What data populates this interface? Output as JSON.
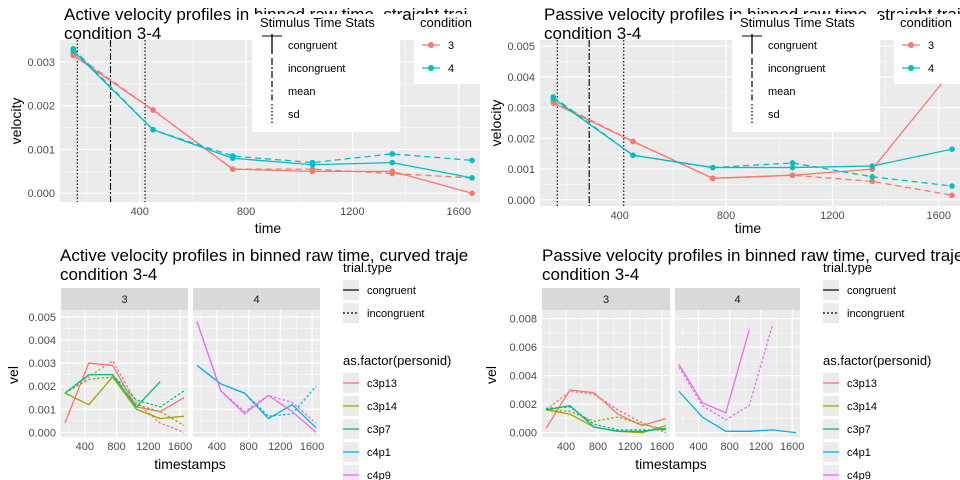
{
  "chart_data": [
    {
      "type": "line",
      "title": "Active velocity profiles in binned raw time, straight traj",
      "subtitle": "condition 3-4",
      "xlabel": "time",
      "ylabel": "velocity",
      "xlim": [
        100,
        1680
      ],
      "ylim": [
        -0.0002,
        0.0035
      ],
      "xticks": [
        400,
        800,
        1200,
        1600
      ],
      "yticks": [
        0,
        0.001,
        0.002,
        0.003
      ],
      "ytick_labels": [
        "0.000",
        "0.001",
        "0.002",
        "0.003"
      ],
      "grid": true,
      "series": [
        {
          "name": "3",
          "trial_type": "congruent",
          "color": "#F8766D",
          "x": [
            150,
            450,
            750,
            1050,
            1350,
            1650
          ],
          "y": [
            0.00315,
            0.0019,
            0.00055,
            0.0005,
            0.0005,
            0.0
          ]
        },
        {
          "name": "3",
          "trial_type": "incongruent",
          "color": "#F8766D",
          "x": [
            150,
            450,
            750,
            1050,
            1350,
            1650
          ],
          "y": [
            0.0032,
            0.0019,
            0.00055,
            0.00055,
            0.00045,
            0.00035
          ]
        },
        {
          "name": "4",
          "trial_type": "congruent",
          "color": "#00BFC4",
          "x": [
            150,
            450,
            750,
            1050,
            1350,
            1650
          ],
          "y": [
            0.00325,
            0.00145,
            0.0008,
            0.00065,
            0.0007,
            0.00035
          ]
        },
        {
          "name": "4",
          "trial_type": "incongruent",
          "color": "#00BFC4",
          "x": [
            150,
            450,
            750,
            1050,
            1350,
            1650
          ],
          "y": [
            0.0033,
            0.00145,
            0.00085,
            0.0007,
            0.0009,
            0.00075
          ]
        }
      ],
      "vlines": [
        {
          "x": 165,
          "style": "sd"
        },
        {
          "x": 290,
          "style": "incongruent"
        },
        {
          "x": 420,
          "style": "sd"
        }
      ],
      "legend_stats": {
        "title": "Stimulus Time Stats",
        "items": [
          "congruent",
          "incongruent",
          "mean",
          "sd"
        ]
      },
      "legend_condition": {
        "title": "condition",
        "items": [
          "3",
          "4"
        ]
      }
    },
    {
      "type": "line",
      "title": "Passive velocity profiles in binned raw time, straight traj",
      "subtitle": "condition 3-4",
      "xlabel": "time",
      "ylabel": "velocity",
      "xlim": [
        100,
        1680
      ],
      "ylim": [
        -0.0002,
        0.0052
      ],
      "xticks": [
        400,
        800,
        1200,
        1600
      ],
      "yticks": [
        0,
        0.001,
        0.002,
        0.003,
        0.004,
        0.005
      ],
      "ytick_labels": [
        "0.000",
        "0.001",
        "0.002",
        "0.003",
        "0.004",
        "0.005"
      ],
      "grid": true,
      "series": [
        {
          "name": "3",
          "trial_type": "congruent",
          "color": "#F8766D",
          "x": [
            150,
            450,
            750,
            1050,
            1350,
            1650
          ],
          "y": [
            0.00315,
            0.0019,
            0.0007,
            0.0008,
            0.001,
            0.0042
          ]
        },
        {
          "name": "3",
          "trial_type": "incongruent",
          "color": "#F8766D",
          "x": [
            150,
            450,
            750,
            1050,
            1350,
            1650
          ],
          "y": [
            0.0032,
            0.0019,
            0.0007,
            0.0008,
            0.0006,
            0.00015
          ]
        },
        {
          "name": "4",
          "trial_type": "congruent",
          "color": "#00BFC4",
          "x": [
            150,
            450,
            750,
            1050,
            1350,
            1650
          ],
          "y": [
            0.0033,
            0.00145,
            0.00105,
            0.00105,
            0.0011,
            0.00165
          ]
        },
        {
          "name": "4",
          "trial_type": "incongruent",
          "color": "#00BFC4",
          "x": [
            150,
            450,
            750,
            1050,
            1350,
            1650
          ],
          "y": [
            0.00335,
            0.00145,
            0.00105,
            0.0012,
            0.00075,
            0.00045
          ]
        }
      ],
      "vlines": [
        {
          "x": 165,
          "style": "sd"
        },
        {
          "x": 285,
          "style": "incongruent"
        },
        {
          "x": 415,
          "style": "sd"
        }
      ],
      "legend_stats": {
        "title": "Stimulus Time Stats",
        "items": [
          "congruent",
          "incongruent",
          "mean",
          "sd"
        ]
      },
      "legend_condition": {
        "title": "condition",
        "items": [
          "3",
          "4"
        ]
      }
    },
    {
      "type": "line",
      "title": "Active velocity profiles in binned raw time, curved traje",
      "subtitle": "condition 3-4",
      "xlabel": "timestamps",
      "ylabel": "vel",
      "xlim": [
        100,
        1700
      ],
      "ylim": [
        -0.0002,
        0.0053
      ],
      "xticks": [
        400,
        800,
        1200,
        1600
      ],
      "yticks": [
        0,
        0.001,
        0.002,
        0.003,
        0.004,
        0.005
      ],
      "ytick_labels": [
        "0.000",
        "0.001",
        "0.002",
        "0.003",
        "0.004",
        "0.005"
      ],
      "grid": true,
      "facets": [
        "3",
        "4"
      ],
      "series": [
        {
          "name": "c3p13",
          "facet": "3",
          "trial_type": "congruent",
          "color": "#F8766D",
          "x": [
            150,
            450,
            750,
            1050,
            1350,
            1650
          ],
          "y": [
            0.0004,
            0.003,
            0.0029,
            0.0011,
            0.0009,
            0.0015
          ]
        },
        {
          "name": "c3p13",
          "facet": "3",
          "trial_type": "incongruent",
          "color": "#F8766D",
          "x": [
            150,
            450,
            750,
            1050,
            1350,
            1650
          ],
          "y": [
            0.0017,
            0.0024,
            0.0031,
            0.0013,
            0.0004,
            0.0
          ]
        },
        {
          "name": "c3p14",
          "facet": "3",
          "trial_type": "congruent",
          "color": "#A3A500",
          "x": [
            150,
            450,
            750,
            1050,
            1350,
            1650
          ],
          "y": [
            0.0017,
            0.0012,
            0.0024,
            0.001,
            0.0006,
            0.0007
          ]
        },
        {
          "name": "c3p14",
          "facet": "3",
          "trial_type": "incongruent",
          "color": "#A3A500",
          "x": [
            150,
            450,
            750,
            1050,
            1350,
            1650
          ],
          "y": [
            0.0017,
            0.0023,
            0.0024,
            0.0012,
            0.0009,
            0.0003
          ]
        },
        {
          "name": "c3p7",
          "facet": "3",
          "trial_type": "congruent",
          "color": "#00BF7D",
          "x": [
            150,
            450,
            750,
            1050,
            1350
          ],
          "y": [
            0.0017,
            0.0025,
            0.0025,
            0.0011,
            0.0022
          ]
        },
        {
          "name": "c3p7",
          "facet": "3",
          "trial_type": "incongruent",
          "color": "#00BF7D",
          "x": [
            150,
            450,
            750,
            1050,
            1350,
            1650
          ],
          "y": [
            0.0017,
            0.0025,
            0.0025,
            0.0014,
            0.0011,
            0.0018
          ]
        },
        {
          "name": "c4p1",
          "facet": "4",
          "trial_type": "congruent",
          "color": "#00B0F6",
          "x": [
            150,
            450,
            750,
            1050,
            1350,
            1650
          ],
          "y": [
            0.0029,
            0.0021,
            0.0017,
            0.0006,
            0.0012,
            0.0002
          ]
        },
        {
          "name": "c4p1",
          "facet": "4",
          "trial_type": "incongruent",
          "color": "#00B0F6",
          "x": [
            150,
            450,
            750,
            1050,
            1350,
            1650
          ],
          "y": [
            0.0029,
            0.0021,
            0.0017,
            0.0007,
            0.0008,
            0.002
          ]
        },
        {
          "name": "c4p9",
          "facet": "4",
          "trial_type": "congruent",
          "color": "#E76BF3",
          "x": [
            150,
            450,
            750,
            1050,
            1350,
            1650
          ],
          "y": [
            0.0048,
            0.0018,
            0.0008,
            0.0016,
            0.0009,
            0.0
          ]
        },
        {
          "name": "c4p9",
          "facet": "4",
          "trial_type": "incongruent",
          "color": "#E76BF3",
          "x": [
            150,
            450,
            750,
            1050,
            1350,
            1650
          ],
          "y": [
            0.0048,
            0.0018,
            0.0009,
            0.0016,
            0.0013,
            0.0004
          ]
        }
      ],
      "legend_trial": {
        "title": "trial.type",
        "items": [
          "congruent",
          "incongruent"
        ]
      },
      "legend_person": {
        "title": "as.factor(personid)",
        "items": [
          "c3p13",
          "c3p14",
          "c3p7",
          "c4p1",
          "c4p9"
        ]
      }
    },
    {
      "type": "line",
      "title": "Passive velocity profiles in binned raw time, curved traje",
      "subtitle": "condition 3-4",
      "xlabel": "timestamps",
      "ylabel": "vel",
      "xlim": [
        100,
        1700
      ],
      "ylim": [
        -0.0003,
        0.0086
      ],
      "xticks": [
        400,
        800,
        1200,
        1600
      ],
      "yticks": [
        0,
        0.002,
        0.004,
        0.006,
        0.008
      ],
      "ytick_labels": [
        "0.000",
        "0.002",
        "0.004",
        "0.006",
        "0.008"
      ],
      "grid": true,
      "facets": [
        "3",
        "4"
      ],
      "series": [
        {
          "name": "c3p13",
          "facet": "3",
          "trial_type": "congruent",
          "color": "#F8766D",
          "x": [
            150,
            450,
            750,
            1050,
            1350,
            1650
          ],
          "y": [
            0.0003,
            0.003,
            0.0028,
            0.0013,
            0.0005,
            0.001
          ]
        },
        {
          "name": "c3p13",
          "facet": "3",
          "trial_type": "incongruent",
          "color": "#F8766D",
          "x": [
            150,
            450,
            750,
            1050,
            1350,
            1650
          ],
          "y": [
            0.0016,
            0.0029,
            0.0027,
            0.0016,
            0.0007,
            0.0
          ]
        },
        {
          "name": "c3p14",
          "facet": "3",
          "trial_type": "congruent",
          "color": "#A3A500",
          "x": [
            150,
            450,
            750,
            1050,
            1350,
            1650
          ],
          "y": [
            0.0016,
            0.0013,
            0.0004,
            0.0001,
            0.0,
            0.0005
          ]
        },
        {
          "name": "c3p14",
          "facet": "3",
          "trial_type": "incongruent",
          "color": "#A3A500",
          "x": [
            150,
            450,
            750,
            1050,
            1350,
            1650
          ],
          "y": [
            0.0016,
            0.0015,
            0.0008,
            0.0011,
            0.0006,
            0.0002
          ]
        },
        {
          "name": "c3p7",
          "facet": "3",
          "trial_type": "congruent",
          "color": "#00BF7D",
          "x": [
            150,
            450,
            750,
            1050,
            1350,
            1650
          ],
          "y": [
            0.0016,
            0.0019,
            0.0004,
            0.0001,
            0.0001,
            0.0003
          ]
        },
        {
          "name": "c3p7",
          "facet": "3",
          "trial_type": "incongruent",
          "color": "#00BF7D",
          "x": [
            150,
            450,
            750,
            1050,
            1350,
            1650
          ],
          "y": [
            0.0017,
            0.0018,
            0.0006,
            0.0002,
            0.0002,
            0.0002
          ]
        },
        {
          "name": "c4p1",
          "facet": "4",
          "trial_type": "congruent",
          "color": "#00B0F6",
          "x": [
            150,
            450,
            750,
            1050,
            1350,
            1650
          ],
          "y": [
            0.0029,
            0.0011,
            0.0001,
            0.0001,
            0.0002,
            0.0
          ]
        },
        {
          "name": "c4p9",
          "facet": "4",
          "trial_type": "congruent",
          "color": "#E76BF3",
          "x": [
            150,
            450,
            750,
            1050
          ],
          "y": [
            0.0048,
            0.0021,
            0.0014,
            0.0072
          ]
        },
        {
          "name": "c4p9",
          "facet": "4",
          "trial_type": "incongruent",
          "color": "#E76BF3",
          "x": [
            150,
            450,
            750,
            1050,
            1350
          ],
          "y": [
            0.0046,
            0.0019,
            0.0009,
            0.0019,
            0.0076
          ]
        }
      ],
      "legend_trial": {
        "title": "trial.type",
        "items": [
          "congruent",
          "incongruent"
        ]
      },
      "legend_person": {
        "title": "as.factor(personid)",
        "items": [
          "c3p13",
          "c3p14",
          "c3p7",
          "c4p1",
          "c4p9"
        ]
      }
    }
  ]
}
